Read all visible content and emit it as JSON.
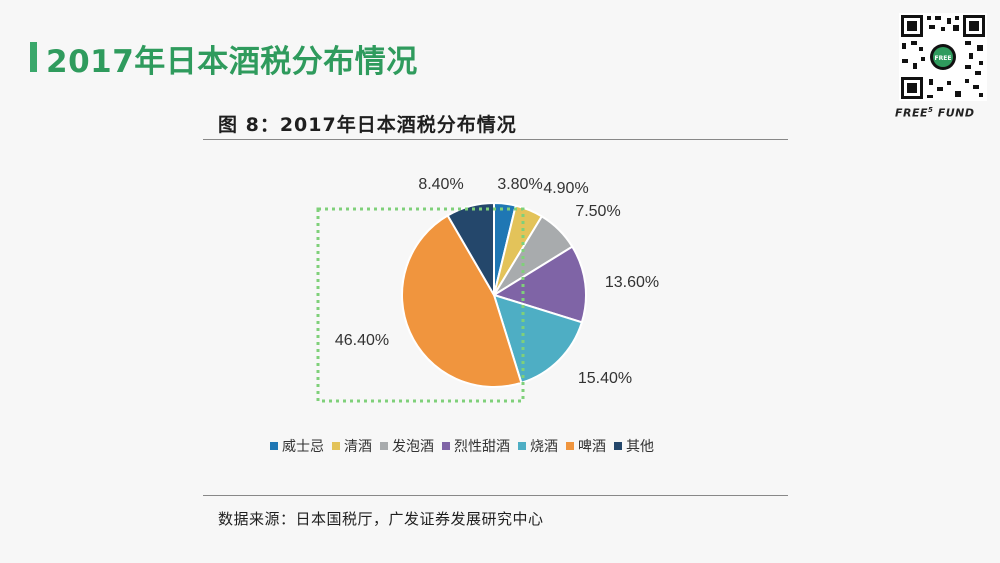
{
  "slide": {
    "title": "2017年日本酒税分布情况",
    "brand": "FREE",
    "brand_sup": "5",
    "brand_suffix": " FUND"
  },
  "figure": {
    "caption": "图  8：2017年日本酒税分布情况",
    "source": "数据来源：日本国税厅，广发证券发展研究中心"
  },
  "chart_data": {
    "type": "pie",
    "title": "",
    "labels": [
      "威士忌",
      "清酒",
      "发泡酒",
      "烈性甜酒",
      "烧酒",
      "啤酒",
      "其他"
    ],
    "values": [
      3.8,
      4.9,
      7.5,
      13.6,
      15.4,
      46.4,
      8.4
    ],
    "value_labels": [
      "3.80%",
      "4.90%",
      "7.50%",
      "13.60%",
      "15.40%",
      "46.40%",
      "8.40%"
    ],
    "colors": [
      "#1f77b4",
      "#e3c35a",
      "#a8abad",
      "#7f64a6",
      "#4eaec4",
      "#f0953e",
      "#24476b"
    ],
    "legend_position": "bottom",
    "highlight": "green dotted box around 啤酒 slice"
  }
}
